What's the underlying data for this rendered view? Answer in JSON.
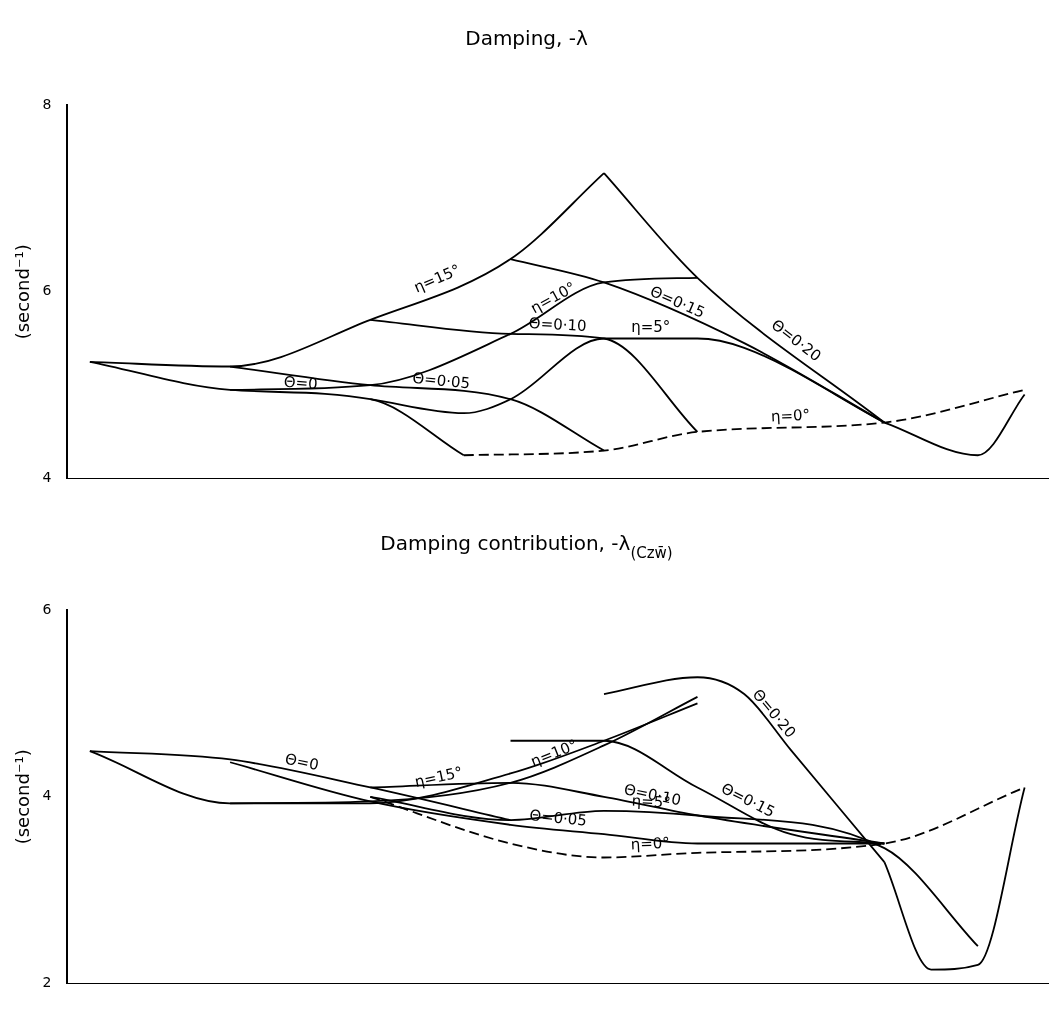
{
  "chart_data": [
    {
      "type": "line",
      "title": "Damping, -λ",
      "ylabel": "(second⁻¹)",
      "categories": [
        null,
        null,
        null,
        null,
        null,
        null,
        null,
        null,
        null,
        null,
        null,
        null,
        null,
        null,
        null,
        null,
        null,
        null,
        null,
        null,
        null
      ],
      "ylim": [
        4,
        8
      ],
      "yticks": [
        4,
        6,
        8
      ],
      "grid": false,
      "legend": false,
      "tick_labels": "y",
      "marker": "none",
      "series": [
        {
          "name": "η=15°",
          "color": "#000000",
          "values": [
            5.25,
            null,
            null,
            5.2,
            null,
            null,
            5.7,
            null,
            null,
            6.35,
            null,
            7.27,
            null,
            null,
            null,
            null,
            null,
            null,
            null,
            null,
            null
          ]
        },
        {
          "name": "η=10°",
          "color": "#000000",
          "values": [
            null,
            null,
            null,
            4.95,
            null,
            null,
            5.0,
            null,
            null,
            5.55,
            null,
            6.1,
            null,
            6.15,
            null,
            null,
            null,
            null,
            null,
            null,
            null
          ]
        },
        {
          "name": "η=5°",
          "color": "#000000",
          "values": [
            null,
            null,
            null,
            null,
            null,
            null,
            4.85,
            null,
            4.7,
            4.85,
            null,
            5.5,
            null,
            5.5,
            5.4,
            null,
            null,
            4.6,
            null,
            null,
            null
          ]
        },
        {
          "name": "η=0°",
          "color": "#000000",
          "line_style": "dashed",
          "values": [
            null,
            null,
            null,
            null,
            null,
            null,
            null,
            null,
            4.25,
            null,
            null,
            4.3,
            null,
            4.5,
            null,
            null,
            null,
            4.6,
            null,
            null,
            4.95
          ]
        },
        {
          "name": "Θ=0",
          "color": "#000000",
          "values": [
            5.25,
            null,
            null,
            4.95,
            null,
            null,
            4.85,
            null,
            4.25,
            null,
            null,
            null,
            null,
            null,
            null,
            null,
            null,
            null,
            null,
            null,
            null
          ]
        },
        {
          "name": "Θ=0·05",
          "color": "#000000",
          "values": [
            null,
            null,
            null,
            5.2,
            null,
            null,
            5.0,
            null,
            null,
            4.85,
            null,
            4.3,
            null,
            null,
            null,
            null,
            null,
            null,
            null,
            null,
            null
          ]
        },
        {
          "name": "Θ=0·10",
          "color": "#000000",
          "values": [
            null,
            null,
            null,
            null,
            null,
            null,
            5.7,
            null,
            null,
            5.55,
            null,
            5.5,
            null,
            4.5,
            null,
            null,
            null,
            null,
            null,
            null,
            null
          ]
        },
        {
          "name": "Θ=0·15",
          "color": "#000000",
          "values": [
            null,
            null,
            null,
            null,
            null,
            null,
            null,
            null,
            null,
            6.35,
            null,
            6.1,
            null,
            null,
            5.45,
            null,
            null,
            4.6,
            null,
            null,
            null
          ]
        },
        {
          "name": "Θ=0·20",
          "color": "#000000",
          "values": [
            null,
            null,
            null,
            null,
            null,
            null,
            null,
            null,
            null,
            null,
            null,
            7.27,
            null,
            6.15,
            null,
            null,
            null,
            4.6,
            null,
            null,
            null
          ]
        },
        {
          "color": "#000000",
          "values": [
            null,
            null,
            null,
            null,
            null,
            null,
            null,
            null,
            null,
            null,
            null,
            null,
            null,
            null,
            null,
            null,
            null,
            4.6,
            null,
            4.25,
            4.9
          ]
        }
      ]
    },
    {
      "type": "line",
      "title": "Damping contribution, -λ$_{(Czw̄)}$",
      "ylabel": "(second⁻¹)",
      "categories": [
        null,
        null,
        null,
        null,
        null,
        null,
        null,
        null,
        null,
        null,
        null,
        null,
        null,
        null,
        null,
        null,
        null,
        null,
        null,
        null,
        null
      ],
      "ylim": [
        2,
        6
      ],
      "yticks": [
        2,
        4,
        6
      ],
      "grid": false,
      "legend": false,
      "tick_labels": "y",
      "marker": "none",
      "series": [
        {
          "name": "η=15°",
          "color": "#000000",
          "values": [
            4.49,
            null,
            null,
            3.93,
            null,
            null,
            3.93,
            null,
            null,
            4.25,
            null,
            4.6,
            null,
            5.0,
            null,
            null,
            null,
            null,
            null,
            null,
            null
          ]
        },
        {
          "name": "η=10°",
          "color": "#000000",
          "values": [
            null,
            null,
            null,
            3.93,
            null,
            null,
            3.95,
            null,
            null,
            4.15,
            null,
            4.55,
            null,
            5.07,
            null,
            null,
            null,
            null,
            null,
            null,
            null
          ]
        },
        {
          "name": "η=5°",
          "color": "#000000",
          "values": [
            null,
            null,
            null,
            null,
            null,
            null,
            4.0,
            null,
            null,
            3.75,
            null,
            3.85,
            null,
            3.8,
            null,
            null,
            null,
            3.45,
            null,
            2.4,
            null
          ]
        },
        {
          "name": "η=0°",
          "color": "#000000",
          "line_style": "dashed",
          "values": [
            null,
            null,
            null,
            null,
            null,
            null,
            4.0,
            null,
            null,
            3.5,
            null,
            3.35,
            null,
            3.4,
            null,
            null,
            null,
            3.5,
            null,
            null,
            4.1
          ]
        },
        {
          "name": "Θ=0",
          "color": "#000000",
          "values": [
            4.49,
            null,
            null,
            4.4,
            null,
            null,
            4.1,
            null,
            null,
            3.75,
            null,
            null,
            null,
            null,
            null,
            null,
            null,
            null,
            null,
            null,
            null
          ]
        },
        {
          "name": "Θ=0·05",
          "color": "#000000",
          "values": [
            null,
            null,
            null,
            4.37,
            null,
            null,
            3.95,
            null,
            null,
            3.7,
            null,
            3.6,
            null,
            3.5,
            null,
            null,
            null,
            3.5,
            null,
            null,
            null
          ]
        },
        {
          "name": "Θ=0·10",
          "color": "#000000",
          "values": [
            null,
            null,
            null,
            null,
            null,
            null,
            4.1,
            null,
            null,
            4.15,
            null,
            4.0,
            null,
            3.8,
            null,
            null,
            null,
            3.5,
            null,
            null,
            null
          ]
        },
        {
          "name": "Θ=0·15",
          "color": "#000000",
          "values": [
            null,
            null,
            null,
            null,
            null,
            null,
            null,
            null,
            null,
            4.6,
            null,
            4.6,
            null,
            4.1,
            null,
            3.6,
            null,
            3.5,
            null,
            null,
            null
          ]
        },
        {
          "name": "Θ=0·20",
          "color": "#000000",
          "values": [
            null,
            null,
            null,
            null,
            null,
            null,
            null,
            null,
            null,
            null,
            null,
            5.1,
            null,
            5.28,
            5.1,
            4.5,
            null,
            3.3,
            null,
            null,
            null
          ]
        },
        {
          "color": "#000000",
          "values": [
            null,
            null,
            null,
            null,
            null,
            null,
            null,
            null,
            null,
            null,
            null,
            null,
            null,
            null,
            null,
            null,
            null,
            3.3,
            2.15,
            2.2,
            4.1
          ]
        }
      ]
    }
  ]
}
